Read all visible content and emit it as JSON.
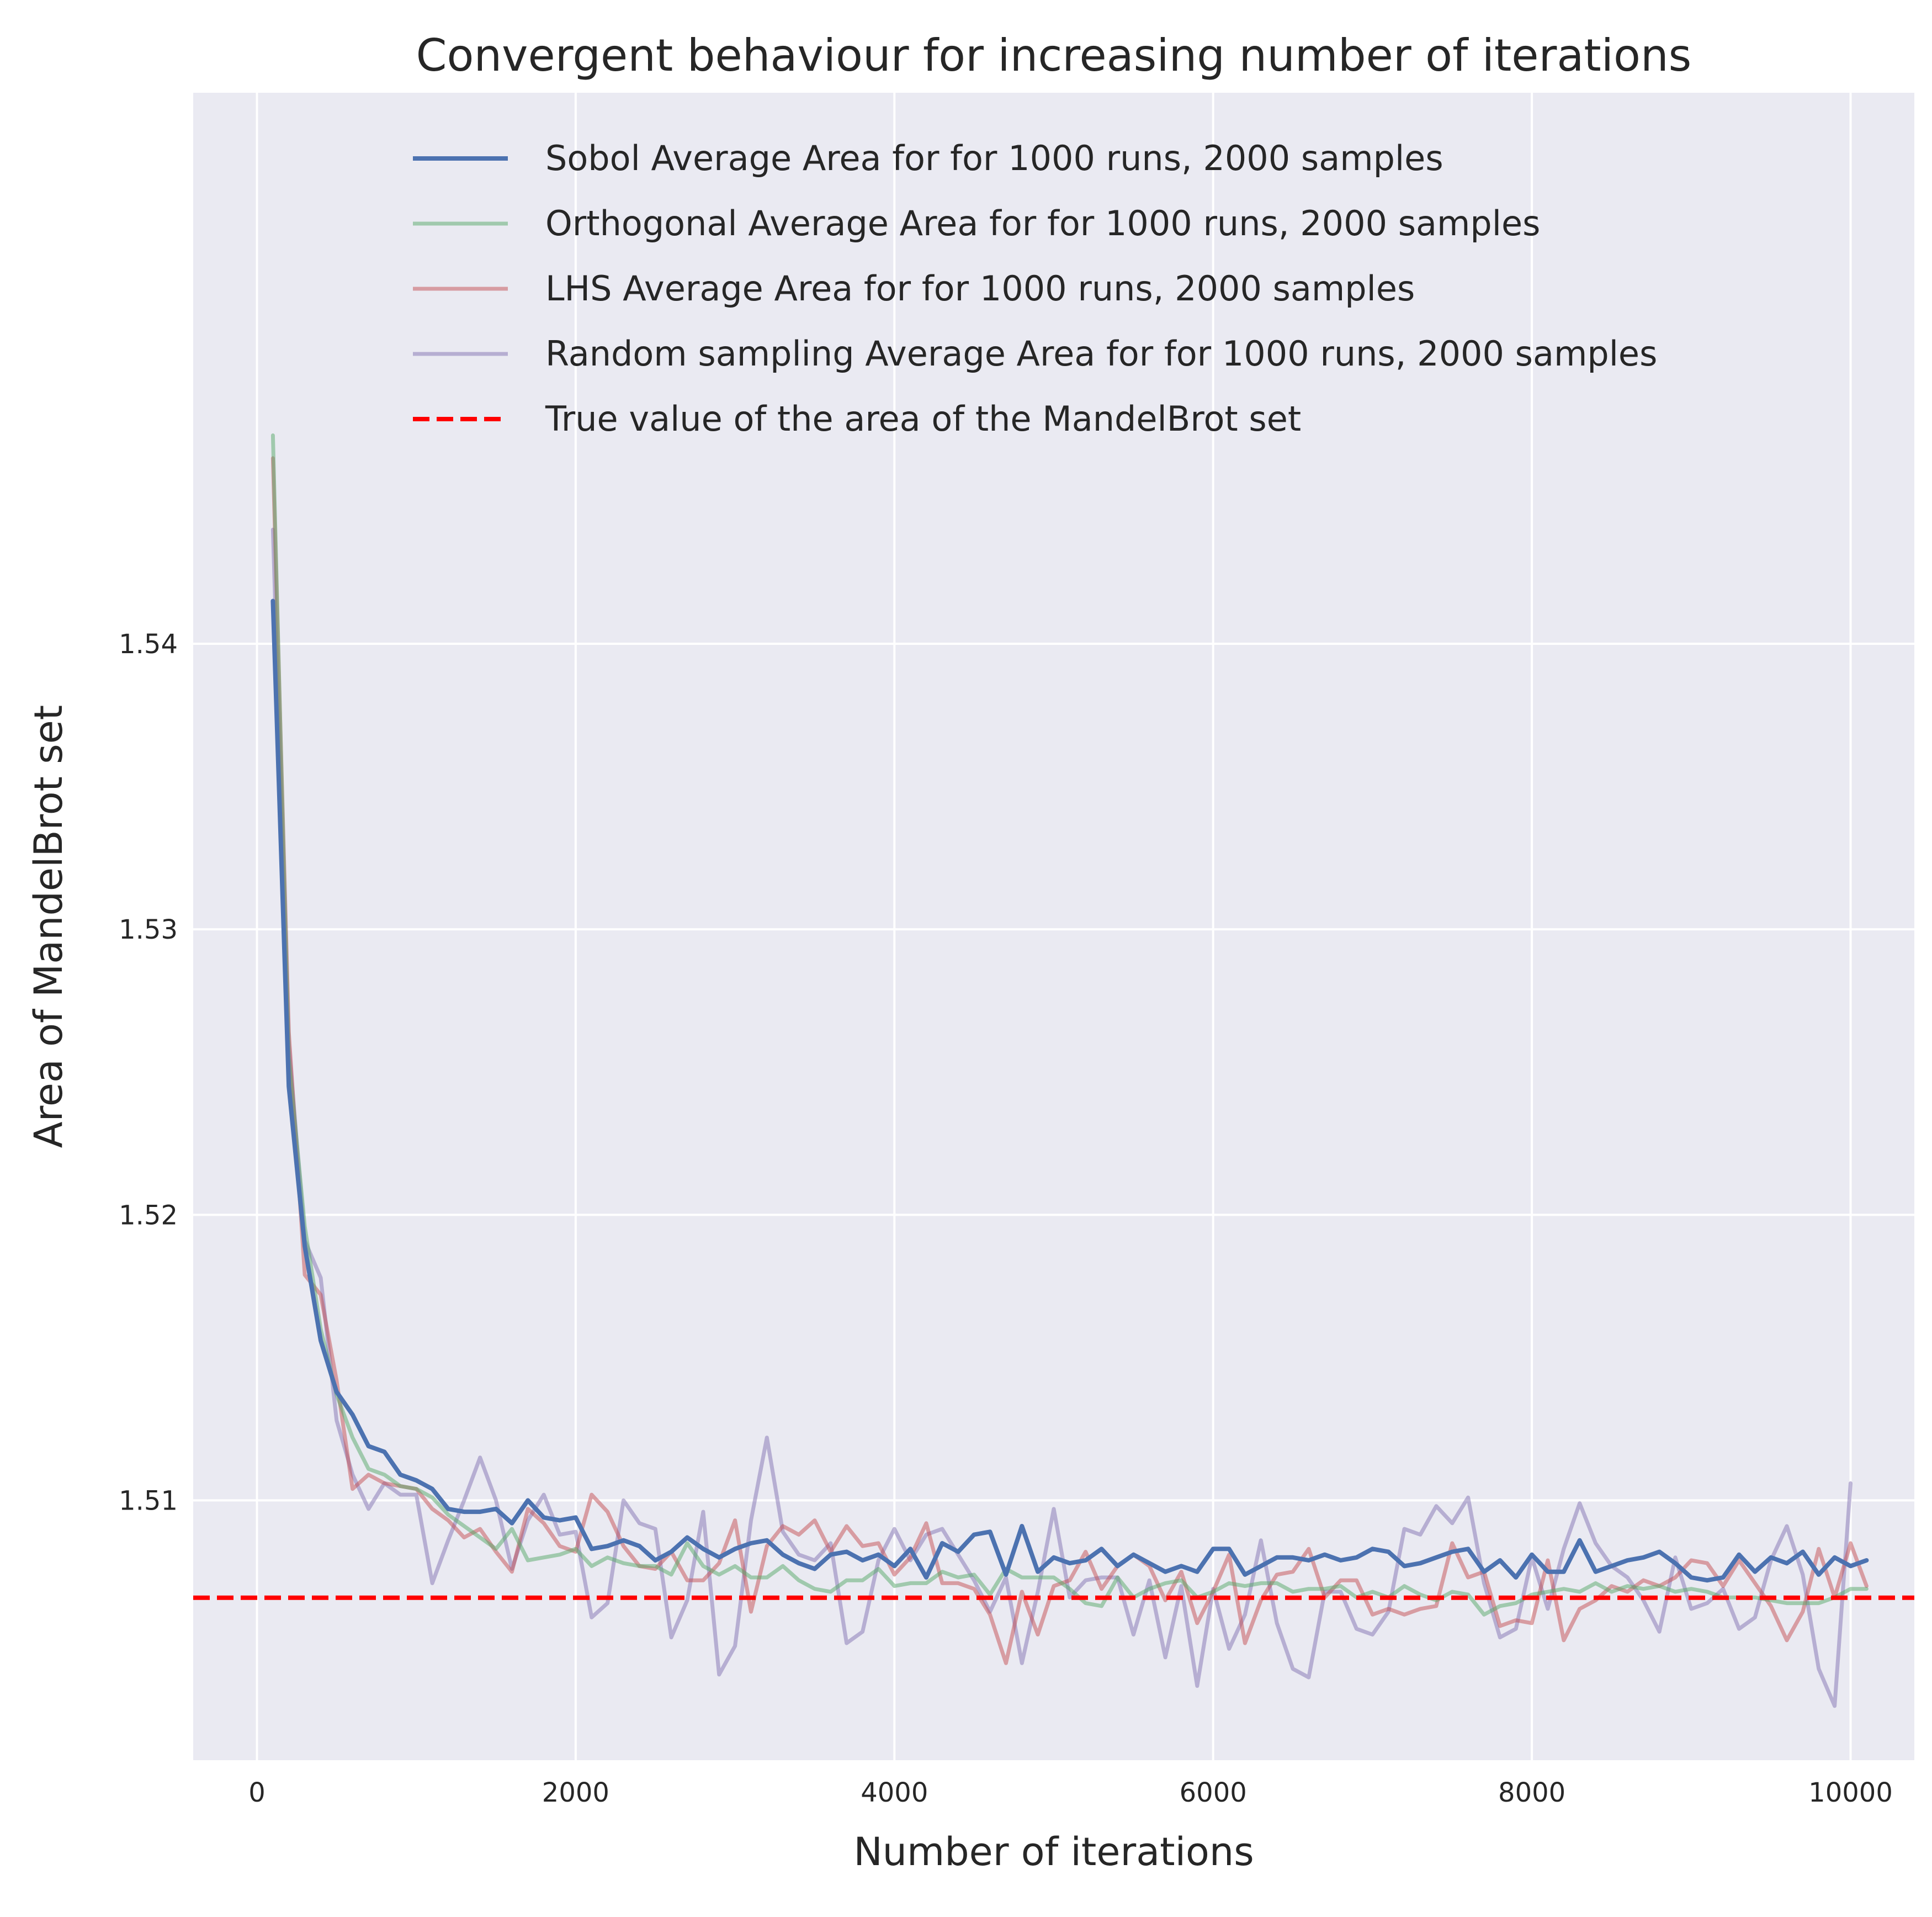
{
  "chart_data": {
    "type": "line",
    "title": "Convergent behaviour for increasing number of iterations",
    "xlabel": "Number of iterations",
    "ylabel": "Area of MandelBrot set",
    "xlim": [
      -400,
      10400
    ],
    "ylim": [
      1.5009,
      1.5593
    ],
    "xticks": [
      0,
      2000,
      4000,
      6000,
      8000,
      10000
    ],
    "xtick_labels": [
      "0",
      "2000",
      "4000",
      "6000",
      "8000",
      "10000"
    ],
    "yticks": [
      1.51,
      1.52,
      1.53,
      1.54
    ],
    "ytick_labels": [
      "1.51",
      "1.52",
      "1.53",
      "1.54"
    ],
    "grid": true,
    "legend_position": "top-right",
    "x_start": 100,
    "x_step": 100,
    "series": [
      {
        "name": "Sobol Average Area for for 1000 runs, 2000 samples",
        "color": "#4c72b0",
        "opacity": 1.0,
        "line_width": 8,
        "values": [
          1.5415,
          1.5245,
          1.5189,
          1.5156,
          1.5138,
          1.513,
          1.5119,
          1.5117,
          1.5109,
          1.5107,
          1.5104,
          1.5097,
          1.5096,
          1.5096,
          1.5097,
          1.5092,
          1.51,
          1.5094,
          1.5093,
          1.5094,
          1.5083,
          1.5084,
          1.5086,
          1.5084,
          1.5079,
          1.5082,
          1.5087,
          1.5083,
          1.508,
          1.5083,
          1.5085,
          1.5086,
          1.5081,
          1.5078,
          1.5076,
          1.5081,
          1.5082,
          1.5079,
          1.5081,
          1.5077,
          1.5083,
          1.5073,
          1.5085,
          1.5082,
          1.5088,
          1.5089,
          1.5074,
          1.5091,
          1.5075,
          1.508,
          1.5078,
          1.5079,
          1.5083,
          1.5077,
          1.5081,
          1.5078,
          1.5075,
          1.5077,
          1.5075,
          1.5083,
          1.5083,
          1.5074,
          1.5077,
          1.508,
          1.508,
          1.5079,
          1.5081,
          1.5079,
          1.508,
          1.5083,
          1.5082,
          1.5077,
          1.5078,
          1.508,
          1.5082,
          1.5083,
          1.5075,
          1.5079,
          1.5073,
          1.5081,
          1.5075,
          1.5075,
          1.5086,
          1.5075,
          1.5077,
          1.5079,
          1.508,
          1.5082,
          1.5078,
          1.5073,
          1.5072,
          1.5073,
          1.5081,
          1.5075,
          1.508,
          1.5078,
          1.5082,
          1.5074,
          1.508,
          1.5077,
          1.5079
        ]
      },
      {
        "name": "Orthogonal Average Area for for 1000 runs, 2000 samples",
        "color": "#55a868",
        "opacity": 0.5,
        "line_width": 7,
        "values": [
          1.5473,
          1.5255,
          1.5196,
          1.516,
          1.5137,
          1.5122,
          1.5111,
          1.5109,
          1.5105,
          1.5104,
          1.5101,
          1.5095,
          1.5091,
          1.5087,
          1.5083,
          1.509,
          1.5079,
          1.508,
          1.5081,
          1.5083,
          1.5077,
          1.508,
          1.5078,
          1.5077,
          1.5077,
          1.5074,
          1.5085,
          1.5077,
          1.5074,
          1.5077,
          1.5073,
          1.5073,
          1.5077,
          1.5072,
          1.5069,
          1.5068,
          1.5072,
          1.5072,
          1.5076,
          1.507,
          1.5071,
          1.5071,
          1.5075,
          1.5073,
          1.5074,
          1.5067,
          1.5076,
          1.5073,
          1.5073,
          1.5073,
          1.5069,
          1.5064,
          1.5063,
          1.5073,
          1.5066,
          1.5069,
          1.5071,
          1.5072,
          1.5066,
          1.5068,
          1.5071,
          1.507,
          1.5071,
          1.5071,
          1.5068,
          1.5069,
          1.5069,
          1.507,
          1.5066,
          1.5068,
          1.5066,
          1.507,
          1.5067,
          1.5065,
          1.5068,
          1.5067,
          1.506,
          1.5063,
          1.5064,
          1.5067,
          1.5068,
          1.5069,
          1.5068,
          1.5071,
          1.5068,
          1.507,
          1.5069,
          1.507,
          1.5068,
          1.5069,
          1.5068,
          1.5066,
          1.5066,
          1.5066,
          1.5065,
          1.5064,
          1.5064,
          1.5064,
          1.5066,
          1.5069,
          1.5069
        ]
      },
      {
        "name": "LHS Average Area for for 1000 runs, 2000 samples",
        "color": "#c44e52",
        "opacity": 0.5,
        "line_width": 7,
        "values": [
          1.5465,
          1.5264,
          1.5179,
          1.5172,
          1.5142,
          1.5104,
          1.5109,
          1.5106,
          1.5105,
          1.5104,
          1.5097,
          1.5093,
          1.5087,
          1.509,
          1.5082,
          1.5075,
          1.5097,
          1.5092,
          1.5084,
          1.5082,
          1.5102,
          1.5096,
          1.5084,
          1.5077,
          1.5076,
          1.5082,
          1.5072,
          1.5072,
          1.5078,
          1.5093,
          1.5061,
          1.5084,
          1.5091,
          1.5088,
          1.5093,
          1.5082,
          1.5091,
          1.5084,
          1.5085,
          1.5074,
          1.508,
          1.5092,
          1.5071,
          1.5071,
          1.5069,
          1.506,
          1.5043,
          1.5068,
          1.5053,
          1.507,
          1.5072,
          1.5082,
          1.5069,
          1.5077,
          1.5081,
          1.5077,
          1.5065,
          1.5075,
          1.5057,
          1.5068,
          1.5081,
          1.505,
          1.5065,
          1.5074,
          1.5075,
          1.5083,
          1.5066,
          1.5072,
          1.5072,
          1.506,
          1.5062,
          1.506,
          1.5062,
          1.5063,
          1.5085,
          1.5073,
          1.5075,
          1.5056,
          1.5058,
          1.5057,
          1.5079,
          1.5051,
          1.5062,
          1.5065,
          1.507,
          1.5068,
          1.5072,
          1.507,
          1.5073,
          1.5079,
          1.5078,
          1.507,
          1.5079,
          1.5071,
          1.5063,
          1.5051,
          1.5061,
          1.5083,
          1.5066,
          1.5085,
          1.507
        ]
      },
      {
        "name": "Random sampling Average Area for for 1000 runs, 2000 samples",
        "color": "#8172b2",
        "opacity": 0.5,
        "line_width": 7,
        "values": [
          1.544,
          1.526,
          1.5191,
          1.5178,
          1.5128,
          1.5109,
          1.5097,
          1.5106,
          1.5102,
          1.5102,
          1.5071,
          1.5086,
          1.51,
          1.5115,
          1.51,
          1.5076,
          1.5093,
          1.5102,
          1.5088,
          1.5089,
          1.5059,
          1.5064,
          1.51,
          1.5092,
          1.509,
          1.5052,
          1.5065,
          1.5096,
          1.5039,
          1.5049,
          1.5093,
          1.5122,
          1.5089,
          1.5081,
          1.5079,
          1.5085,
          1.505,
          1.5054,
          1.5079,
          1.509,
          1.5079,
          1.5088,
          1.509,
          1.5081,
          1.5072,
          1.5061,
          1.5073,
          1.5043,
          1.5068,
          1.5097,
          1.5066,
          1.5072,
          1.5073,
          1.5073,
          1.5053,
          1.5072,
          1.5045,
          1.507,
          1.5035,
          1.5069,
          1.5048,
          1.506,
          1.5086,
          1.5057,
          1.5041,
          1.5038,
          1.5068,
          1.5068,
          1.5055,
          1.5053,
          1.5061,
          1.509,
          1.5088,
          1.5098,
          1.5092,
          1.5101,
          1.5071,
          1.5052,
          1.5055,
          1.508,
          1.5062,
          1.5083,
          1.5099,
          1.5085,
          1.5077,
          1.5073,
          1.5065,
          1.5054,
          1.508,
          1.5062,
          1.5064,
          1.5069,
          1.5055,
          1.5059,
          1.5079,
          1.5091,
          1.5074,
          1.5041,
          1.5028,
          1.5106
        ]
      }
    ],
    "reference_line": {
      "name": "True value of the area of the MandelBrot set",
      "value": 1.50659,
      "color": "#ff0000",
      "style": "dashed"
    },
    "background_color": "#eaeaf2",
    "grid_color": "#ffffff"
  }
}
